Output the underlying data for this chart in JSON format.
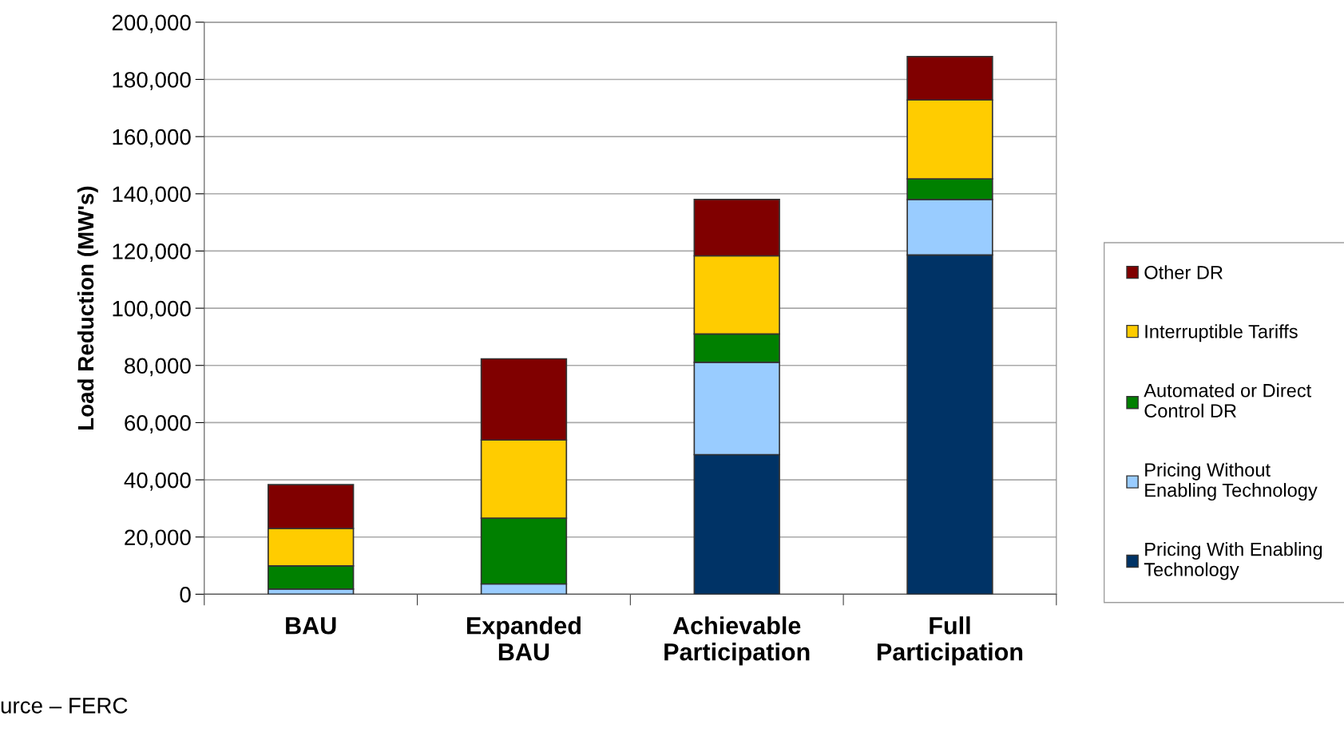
{
  "chart_data": {
    "type": "bar",
    "stacked": true,
    "ylabel": "Load Reduction (MW's)",
    "categories": [
      "BAU",
      "Expanded\nBAU",
      "Achievable\nParticipation",
      "Full\nParticipation"
    ],
    "series": [
      {
        "name": "Pricing With Enabling\nTechnology",
        "color": "#003366",
        "values": [
          0,
          0,
          48800,
          118600
        ]
      },
      {
        "name": "Pricing Without\nEnabling Technology",
        "color": "#99ccff",
        "values": [
          1800,
          3600,
          32300,
          19400
        ]
      },
      {
        "name": "Automated or Direct\nControl DR",
        "color": "#008000",
        "values": [
          8100,
          23000,
          9900,
          7200
        ]
      },
      {
        "name": "Interruptible Tariffs",
        "color": "#ffcc00",
        "values": [
          13100,
          27300,
          27300,
          27600
        ]
      },
      {
        "name": "Other DR",
        "color": "#800000",
        "values": [
          15300,
          28400,
          19700,
          15200
        ]
      }
    ],
    "ylim": [
      0,
      200000
    ],
    "yticks": [
      {
        "value": 0,
        "label": "0"
      },
      {
        "value": 20000,
        "label": "20,000"
      },
      {
        "value": 40000,
        "label": "40,000"
      },
      {
        "value": 60000,
        "label": "60,000"
      },
      {
        "value": 80000,
        "label": "80,000"
      },
      {
        "value": 100000,
        "label": "100,000"
      },
      {
        "value": 120000,
        "label": "120,000"
      },
      {
        "value": 140000,
        "label": "140,000"
      },
      {
        "value": 160000,
        "label": "160,000"
      },
      {
        "value": 180000,
        "label": "180,000"
      },
      {
        "value": 200000,
        "label": "200,000"
      }
    ],
    "grid": "y",
    "legend": "right",
    "annotations": [
      "urce – FERC"
    ]
  }
}
